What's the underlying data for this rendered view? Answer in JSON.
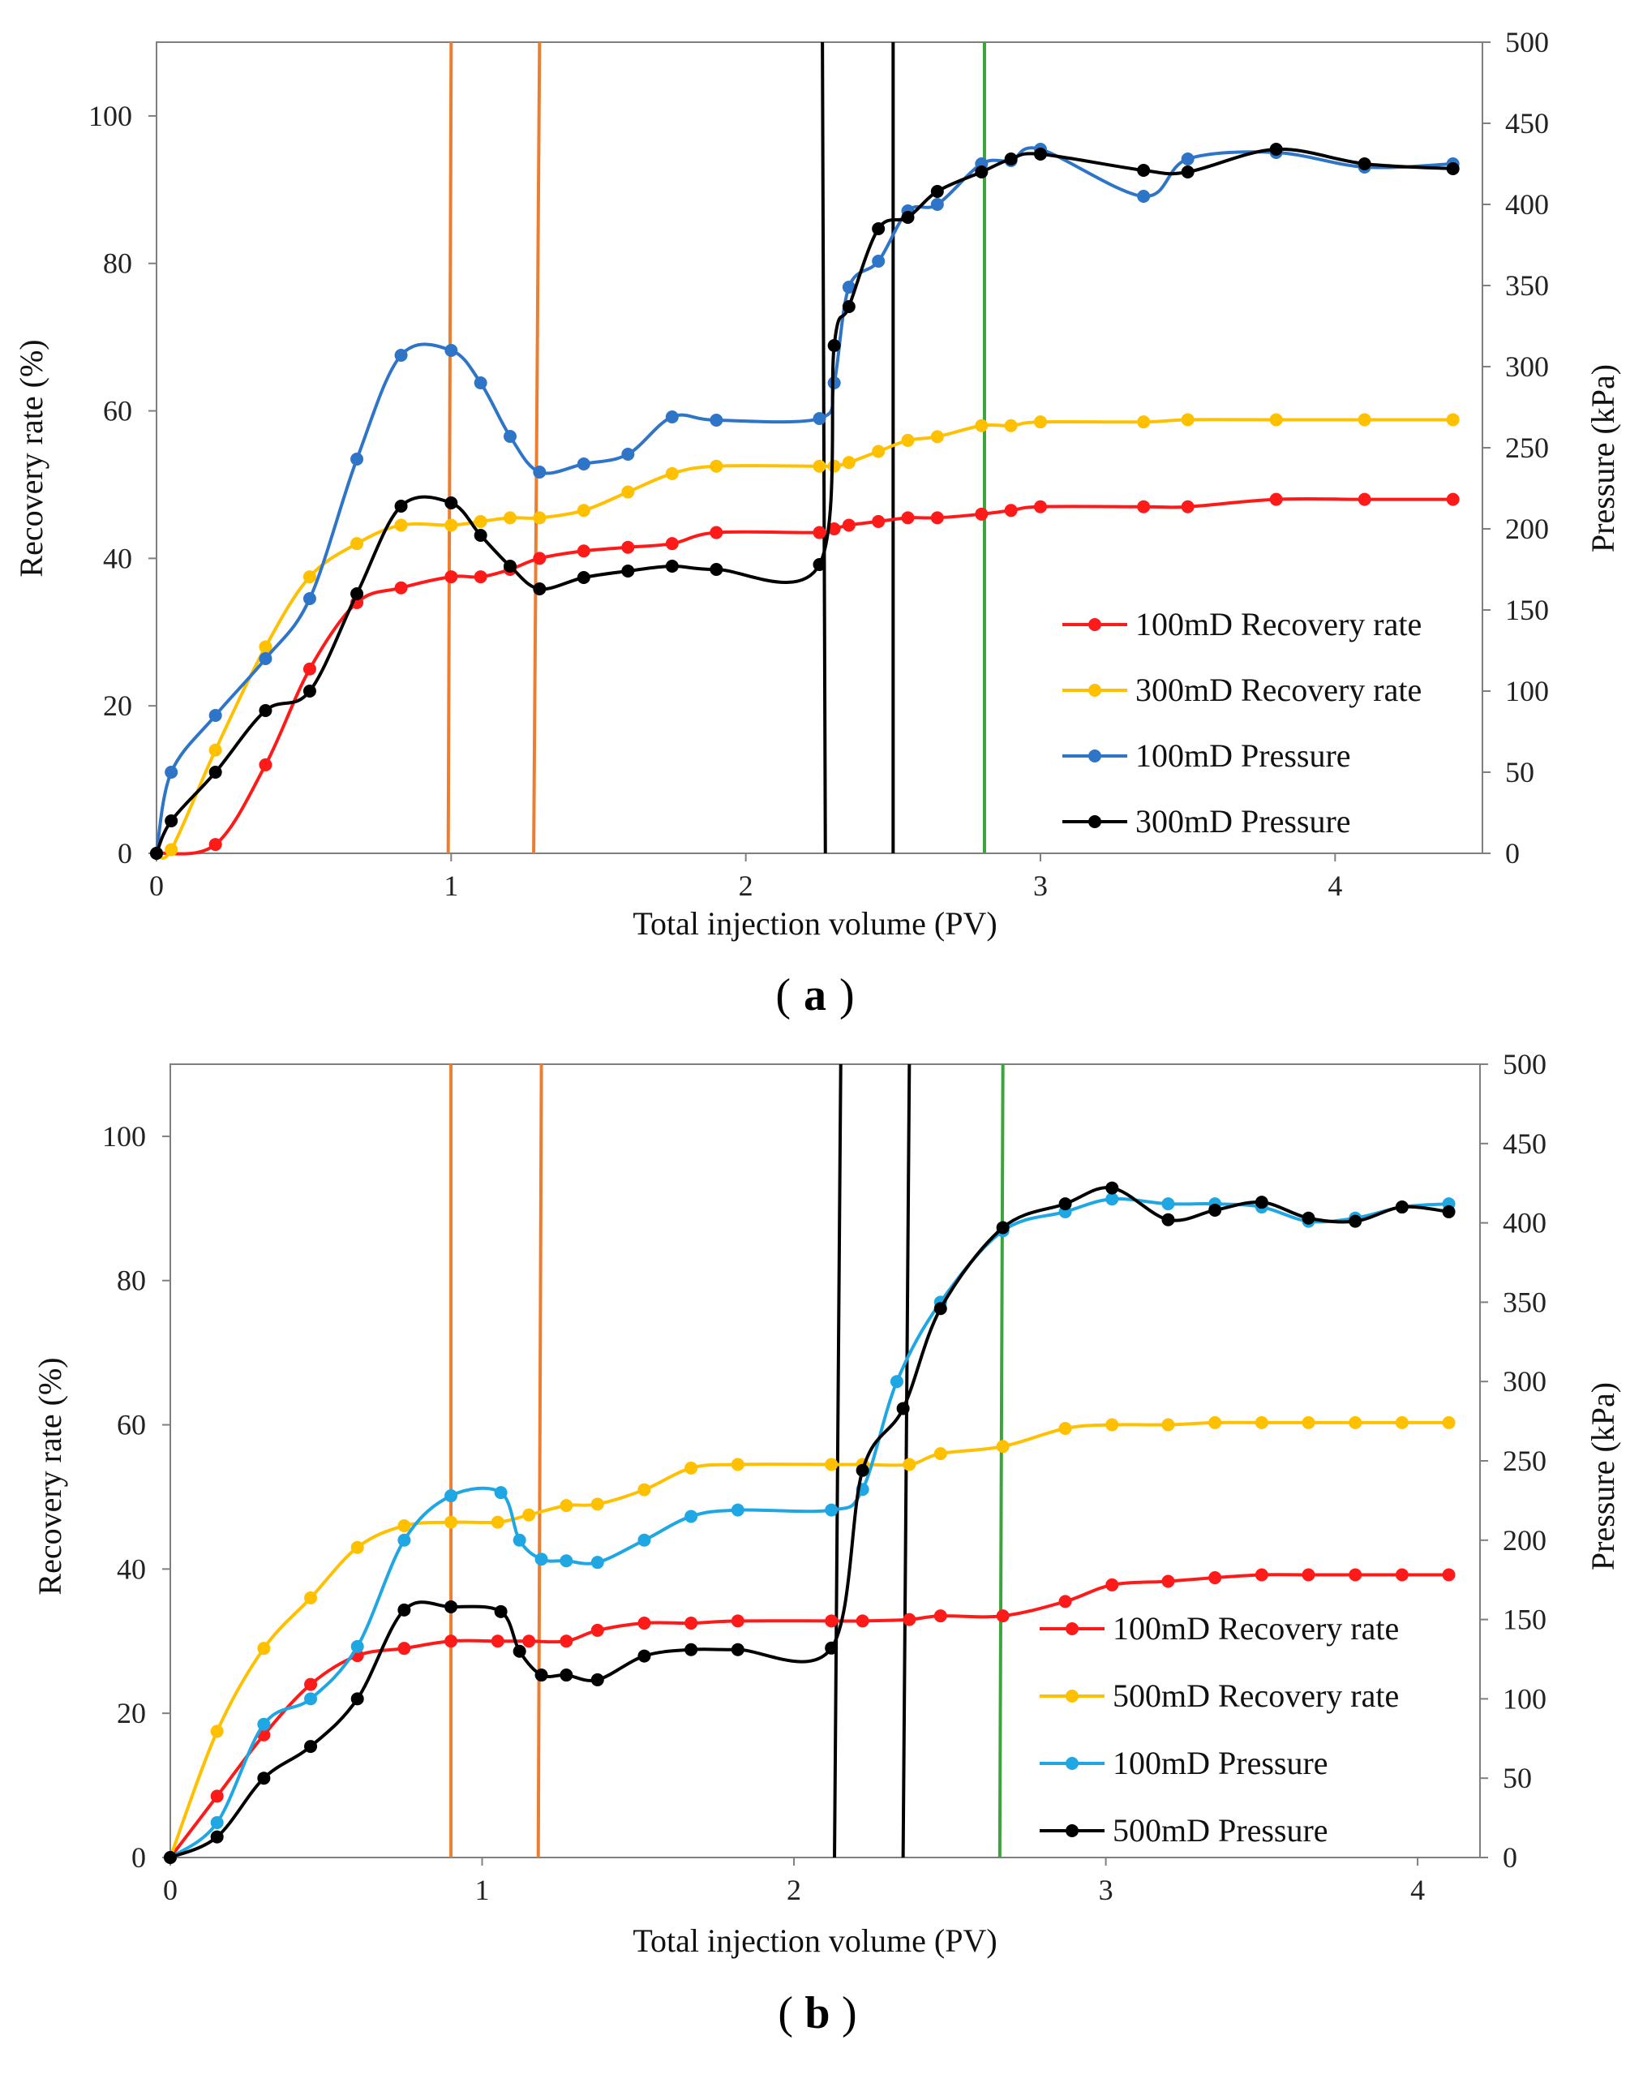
{
  "chart_data": [
    {
      "type": "line",
      "panel": "(a)",
      "panel_letter": "a",
      "xlabel": "Total injection volume (PV)",
      "ylabel_left": "Recovery rate (%)",
      "ylabel_right": "Pressure (kPa)",
      "xlim": [
        0,
        4.5
      ],
      "x_ticks": [
        0,
        1,
        2,
        3,
        4
      ],
      "x_tick_labels": [
        "0",
        "1",
        "2",
        "3",
        "4"
      ],
      "ylim_left": [
        0,
        110
      ],
      "y_left_ticks": [
        0,
        20,
        40,
        60,
        80,
        100
      ],
      "y_left_tick_labels": [
        "0",
        "20",
        "40",
        "60",
        "80",
        "100"
      ],
      "ylim_right": [
        0,
        500
      ],
      "y_right_ticks": [
        0,
        50,
        100,
        150,
        200,
        250,
        300,
        350,
        400,
        450,
        500
      ],
      "y_right_tick_labels": [
        "0",
        "50",
        "100",
        "150",
        "200",
        "250",
        "300",
        "350",
        "400",
        "450",
        "500"
      ],
      "vlines": [
        {
          "color": "#ED7D31",
          "x1": 1.0,
          "x2": 0.99
        },
        {
          "color": "#ED7D31",
          "x1": 1.3,
          "x2": 1.28
        },
        {
          "color": "#000000",
          "x1": 2.26,
          "x2": 2.27
        },
        {
          "color": "#000000",
          "x1": 2.5,
          "x2": 2.5
        },
        {
          "color": "#3DA33D",
          "x1": 2.81,
          "x2": 2.81
        }
      ],
      "series": [
        {
          "name": "100mD Recovery rate",
          "axis": "left",
          "color": "#FF1A1A",
          "x": [
            0.0,
            0.2,
            0.37,
            0.52,
            0.68,
            0.83,
            1.0,
            1.1,
            1.2,
            1.3,
            1.45,
            1.6,
            1.75,
            1.9,
            2.25,
            2.3,
            2.35,
            2.45,
            2.55,
            2.65,
            2.8,
            2.9,
            3.0,
            3.35,
            3.5,
            3.8,
            4.1,
            4.4
          ],
          "values": [
            0,
            1.2,
            12,
            25,
            34,
            36,
            37.5,
            37.5,
            38.5,
            40,
            41,
            41.5,
            42,
            43.5,
            43.5,
            44,
            44.5,
            45,
            45.5,
            45.5,
            46,
            46.5,
            47,
            47,
            47,
            48,
            48,
            48
          ]
        },
        {
          "name": "300mD Recovery rate",
          "axis": "left",
          "color": "#FFC000",
          "x": [
            0.0,
            0.05,
            0.2,
            0.37,
            0.52,
            0.68,
            0.83,
            1.0,
            1.1,
            1.2,
            1.3,
            1.45,
            1.6,
            1.75,
            1.9,
            2.25,
            2.3,
            2.35,
            2.45,
            2.55,
            2.65,
            2.8,
            2.9,
            3.0,
            3.35,
            3.5,
            3.8,
            4.1,
            4.4
          ],
          "values": [
            0,
            0.5,
            14,
            28,
            37.5,
            42,
            44.5,
            44.5,
            45,
            45.5,
            45.5,
            46.5,
            49,
            51.5,
            52.5,
            52.5,
            52.5,
            53,
            54.5,
            56,
            56.5,
            58,
            58,
            58.5,
            58.5,
            58.8,
            58.8,
            58.8,
            58.8
          ]
        },
        {
          "name": "100mD Pressure",
          "axis": "right",
          "color": "#2E75C8",
          "x": [
            0.0,
            0.05,
            0.2,
            0.37,
            0.52,
            0.68,
            0.83,
            1.0,
            1.1,
            1.2,
            1.3,
            1.45,
            1.6,
            1.75,
            1.9,
            2.25,
            2.3,
            2.35,
            2.45,
            2.55,
            2.65,
            2.8,
            2.9,
            3.0,
            3.35,
            3.5,
            3.8,
            4.1,
            4.4
          ],
          "values": [
            0,
            50,
            85,
            120,
            157,
            243,
            307,
            310,
            290,
            257,
            235,
            240,
            246,
            269,
            267,
            268,
            290,
            349,
            365,
            396,
            400,
            425,
            427,
            434,
            405,
            428,
            432,
            423,
            425
          ]
        },
        {
          "name": "300mD Pressure",
          "axis": "right",
          "color": "#000000",
          "x": [
            0.0,
            0.05,
            0.2,
            0.37,
            0.52,
            0.68,
            0.83,
            1.0,
            1.1,
            1.2,
            1.3,
            1.45,
            1.6,
            1.75,
            1.9,
            2.25,
            2.3,
            2.35,
            2.45,
            2.55,
            2.65,
            2.8,
            2.9,
            3.0,
            3.35,
            3.5,
            3.8,
            4.1,
            4.4
          ],
          "values": [
            0,
            20,
            50,
            88,
            100,
            160,
            214,
            216,
            196,
            177,
            163,
            170,
            174,
            177,
            175,
            178,
            313,
            337,
            385,
            392,
            408,
            420,
            428,
            431,
            421,
            420,
            434,
            425,
            422
          ]
        }
      ],
      "legend": [
        {
          "label": "100mD Recovery rate",
          "color": "#FF1A1A"
        },
        {
          "label": "300mD Recovery rate",
          "color": "#FFC000"
        },
        {
          "label": "100mD Pressure",
          "color": "#2E75C8"
        },
        {
          "label": "300mD Pressure",
          "color": "#000000"
        }
      ]
    },
    {
      "type": "line",
      "panel": "(b)",
      "panel_letter": "b",
      "xlabel": "Total injection volume (PV)",
      "ylabel_left": "Recovery rate (%)",
      "ylabel_right": "Pressure (kPa)",
      "xlim": [
        0,
        4.2
      ],
      "x_ticks": [
        0,
        1,
        2,
        3,
        4
      ],
      "x_tick_labels": [
        "0",
        "1",
        "2",
        "3",
        "4"
      ],
      "ylim_left": [
        0,
        110
      ],
      "y_left_ticks": [
        0,
        20,
        40,
        60,
        80,
        100
      ],
      "y_left_tick_labels": [
        "0",
        "20",
        "40",
        "60",
        "80",
        "100"
      ],
      "ylim_right": [
        0,
        500
      ],
      "y_right_ticks": [
        0,
        50,
        100,
        150,
        200,
        250,
        300,
        350,
        400,
        450,
        500
      ],
      "y_right_tick_labels": [
        "0",
        "50",
        "100",
        "150",
        "200",
        "250",
        "300",
        "350",
        "400",
        "450",
        "500"
      ],
      "vlines": [
        {
          "color": "#ED7D31",
          "x1": 0.9,
          "x2": 0.9
        },
        {
          "color": "#ED7D31",
          "x1": 1.19,
          "x2": 1.18
        },
        {
          "color": "#000000",
          "x1": 2.15,
          "x2": 2.13
        },
        {
          "color": "#000000",
          "x1": 2.37,
          "x2": 2.35
        },
        {
          "color": "#3DA33D",
          "x1": 2.67,
          "x2": 2.66
        }
      ],
      "series": [
        {
          "name": "100mD Recovery rate",
          "axis": "left",
          "color": "#FF1A1A",
          "x": [
            0.0,
            0.15,
            0.3,
            0.45,
            0.6,
            0.75,
            0.9,
            1.05,
            1.15,
            1.27,
            1.37,
            1.52,
            1.67,
            1.82,
            2.12,
            2.22,
            2.37,
            2.47,
            2.67,
            2.87,
            3.02,
            3.2,
            3.35,
            3.5,
            3.65,
            3.8,
            3.95,
            4.1
          ],
          "values": [
            0,
            8.5,
            17,
            24,
            28,
            29,
            30,
            30,
            30,
            30,
            31.5,
            32.5,
            32.5,
            32.8,
            32.8,
            32.8,
            33,
            33.5,
            33.5,
            35.5,
            37.8,
            38.3,
            38.8,
            39.2,
            39.2,
            39.2,
            39.2,
            39.2
          ]
        },
        {
          "name": "500mD Recovery rate",
          "axis": "left",
          "color": "#FFC000",
          "x": [
            0.0,
            0.15,
            0.3,
            0.45,
            0.6,
            0.75,
            0.9,
            1.05,
            1.15,
            1.27,
            1.37,
            1.52,
            1.67,
            1.82,
            2.12,
            2.22,
            2.37,
            2.47,
            2.67,
            2.87,
            3.02,
            3.2,
            3.35,
            3.5,
            3.65,
            3.8,
            3.95,
            4.1
          ],
          "values": [
            0,
            17.5,
            29,
            36,
            43,
            46,
            46.5,
            46.5,
            47.5,
            48.8,
            49,
            51,
            54,
            54.5,
            54.5,
            54.5,
            54.5,
            56,
            57,
            59.5,
            60,
            60,
            60.3,
            60.3,
            60.3,
            60.3,
            60.3,
            60.3
          ]
        },
        {
          "name": "100mD Pressure",
          "axis": "right",
          "color": "#1FA7E3",
          "x": [
            0.0,
            0.15,
            0.3,
            0.45,
            0.6,
            0.75,
            0.9,
            1.06,
            1.12,
            1.19,
            1.27,
            1.37,
            1.52,
            1.67,
            1.82,
            2.12,
            2.22,
            2.33,
            2.47,
            2.67,
            2.87,
            3.02,
            3.2,
            3.35,
            3.5,
            3.65,
            3.8,
            3.95,
            4.1
          ],
          "values": [
            0,
            22,
            84,
            100,
            133,
            200,
            228,
            230,
            200,
            188,
            187,
            186,
            200,
            215,
            219,
            219,
            232,
            300,
            350,
            395,
            407,
            415,
            412,
            412,
            410,
            401,
            403,
            410,
            412
          ]
        },
        {
          "name": "500mD Pressure",
          "axis": "right",
          "color": "#000000",
          "x": [
            0.0,
            0.15,
            0.3,
            0.45,
            0.6,
            0.75,
            0.9,
            1.06,
            1.12,
            1.19,
            1.27,
            1.37,
            1.52,
            1.67,
            1.82,
            2.12,
            2.22,
            2.35,
            2.47,
            2.67,
            2.87,
            3.02,
            3.2,
            3.35,
            3.5,
            3.65,
            3.8,
            3.95,
            4.1
          ],
          "values": [
            0,
            13,
            50,
            70,
            100,
            156,
            158,
            155,
            130,
            115,
            115,
            112,
            127,
            131,
            131,
            132,
            244,
            283,
            346,
            397,
            412,
            422,
            402,
            408,
            413,
            403,
            401,
            410,
            407
          ]
        }
      ],
      "legend": [
        {
          "label": "100mD Recovery rate",
          "color": "#FF1A1A"
        },
        {
          "label": "500mD Recovery rate",
          "color": "#FFC000"
        },
        {
          "label": "100mD Pressure",
          "color": "#1FA7E3"
        },
        {
          "label": "500mD Pressure",
          "color": "#000000"
        }
      ]
    }
  ]
}
